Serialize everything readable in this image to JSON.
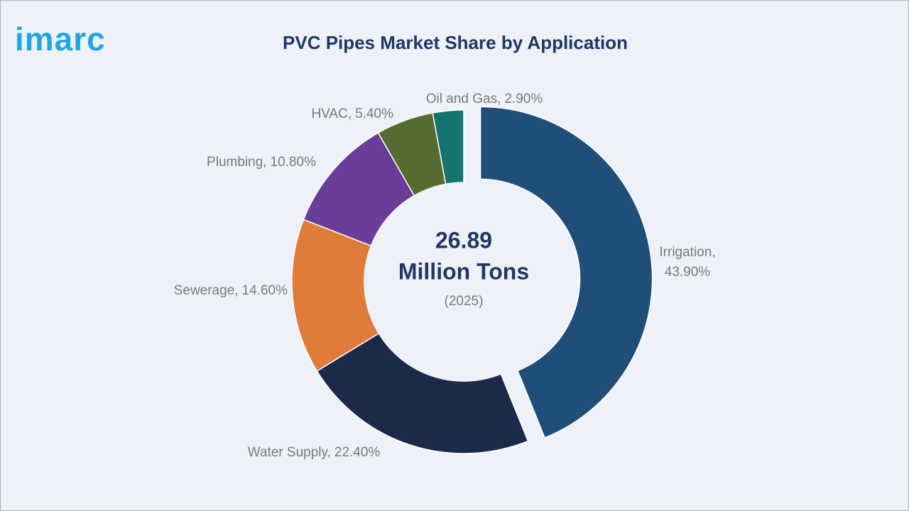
{
  "logo": "imarc",
  "chart_data": {
    "type": "donut",
    "title": "PVC Pipes Market Share by Application",
    "categories": [
      "Irrigation,",
      "Water Supply,",
      "Sewerage,",
      "Plumbing,",
      "HVAC,",
      "Oil and Gas,"
    ],
    "values": [
      43.9,
      22.4,
      14.6,
      10.8,
      5.4,
      2.9
    ],
    "value_labels": [
      "43.90%",
      "22.40%",
      "14.60%",
      "10.80%",
      "5.40%",
      "2.90%"
    ],
    "colors": [
      "#1f4e79",
      "#1c2a4a",
      "#e07b39",
      "#6a3d9a",
      "#556b2f",
      "#137470"
    ],
    "exploded": [
      true,
      false,
      false,
      false,
      false,
      false
    ],
    "center_text": [
      "26.89",
      "Million Tons",
      "(2025)"
    ]
  }
}
